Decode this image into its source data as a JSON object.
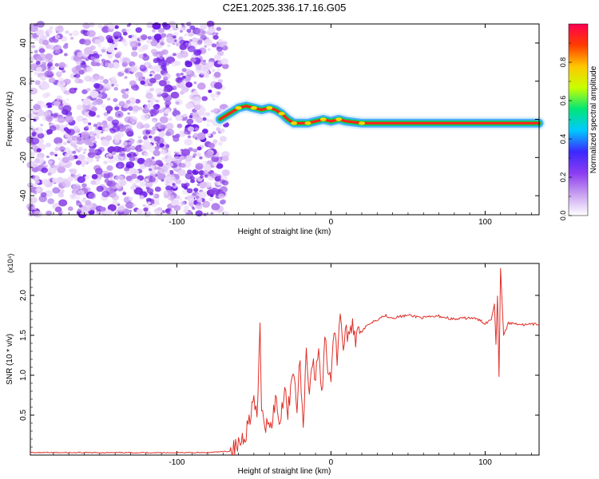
{
  "figure": {
    "title": "C2E1.2025.336.17.16.G05"
  },
  "chart_data": [
    {
      "type": "heatmap",
      "title": "C2E1.2025.336.17.16.G05",
      "xlabel": "Height of straight line (km)",
      "ylabel": "Frequency (Hz)",
      "xlim": [
        -195,
        135
      ],
      "ylim": [
        -50,
        50
      ],
      "xticks": [
        -100,
        0,
        100
      ],
      "yticks": [
        -40,
        -20,
        0,
        20,
        40
      ],
      "noise_region_x": [
        -195,
        -68
      ],
      "ridge": {
        "x": [
          -72,
          -66,
          -60,
          -55,
          -50,
          -45,
          -40,
          -36,
          -32,
          -28,
          -24,
          -20,
          -15,
          -10,
          -5,
          0,
          5,
          10,
          20,
          40,
          60,
          80,
          100,
          110,
          120,
          135
        ],
        "freq": [
          0,
          3,
          6,
          7,
          6,
          5,
          6,
          5,
          3,
          0,
          -2,
          -2,
          -2,
          -1,
          0,
          -1,
          0,
          -1,
          -2,
          -2,
          -2,
          -2,
          -2,
          -2,
          -2,
          -2
        ]
      },
      "colorbar": {
        "label": "Normalized spectral amplitude",
        "ticks": [
          "0.0",
          "0.2",
          "0.4",
          "0.6",
          "0.8"
        ],
        "tick_values": [
          0.0,
          0.2,
          0.4,
          0.6,
          0.8
        ],
        "range": [
          0,
          1
        ],
        "colors": [
          "#ffffff",
          "#c8a0f0",
          "#8c3cf0",
          "#3c28ff",
          "#00c8ff",
          "#00e678",
          "#c8ff00",
          "#ffc800",
          "#ff3c00",
          "#ff0050"
        ]
      }
    },
    {
      "type": "line",
      "xlabel": "Height of straight line (km)",
      "ylabel": "SNR (10 * v/v)",
      "yscale_label": "(x10⁴)",
      "xlim": [
        -195,
        135
      ],
      "ylim": [
        0,
        2.4
      ],
      "xticks": [
        -100,
        0,
        100
      ],
      "yticks": [
        0.5,
        1.0,
        1.5,
        2.0
      ],
      "ytick_labels": [
        "0.5",
        "1.0",
        "1.5",
        "2.0"
      ],
      "series": [
        {
          "name": "SNR",
          "color": "#e0302a",
          "x": [
            -195,
            -150,
            -100,
            -80,
            -65,
            -60,
            -55,
            -50,
            -48,
            -46,
            -45,
            -43,
            -41,
            -39,
            -36,
            -33,
            -30,
            -28,
            -25,
            -22,
            -20,
            -18,
            -16,
            -14,
            -12,
            -10,
            -8,
            -6,
            -4,
            -2,
            0,
            2,
            4,
            6,
            8,
            10,
            12,
            14,
            16,
            18,
            20,
            25,
            30,
            35,
            40,
            50,
            60,
            70,
            80,
            90,
            95,
            100,
            104,
            106,
            107,
            108,
            109,
            110,
            112,
            115,
            120,
            125,
            135
          ],
          "y": [
            0.03,
            0.03,
            0.03,
            0.03,
            0.05,
            0.12,
            0.3,
            0.7,
            0.4,
            1.6,
            0.6,
            0.25,
            0.5,
            0.35,
            0.7,
            0.4,
            0.9,
            0.5,
            1.1,
            0.6,
            1.2,
            0.3,
            1.35,
            0.8,
            1.2,
            0.9,
            1.4,
            0.7,
            1.5,
            1.1,
            1.0,
            1.6,
            1.2,
            1.85,
            1.3,
            1.6,
            1.4,
            1.7,
            1.45,
            1.65,
            1.55,
            1.65,
            1.7,
            1.75,
            1.72,
            1.75,
            1.72,
            1.74,
            1.7,
            1.72,
            1.7,
            1.65,
            1.7,
            1.9,
            1.4,
            2.0,
            1.0,
            2.35,
            1.5,
            1.65,
            1.65,
            1.63,
            1.64
          ]
        }
      ]
    }
  ]
}
